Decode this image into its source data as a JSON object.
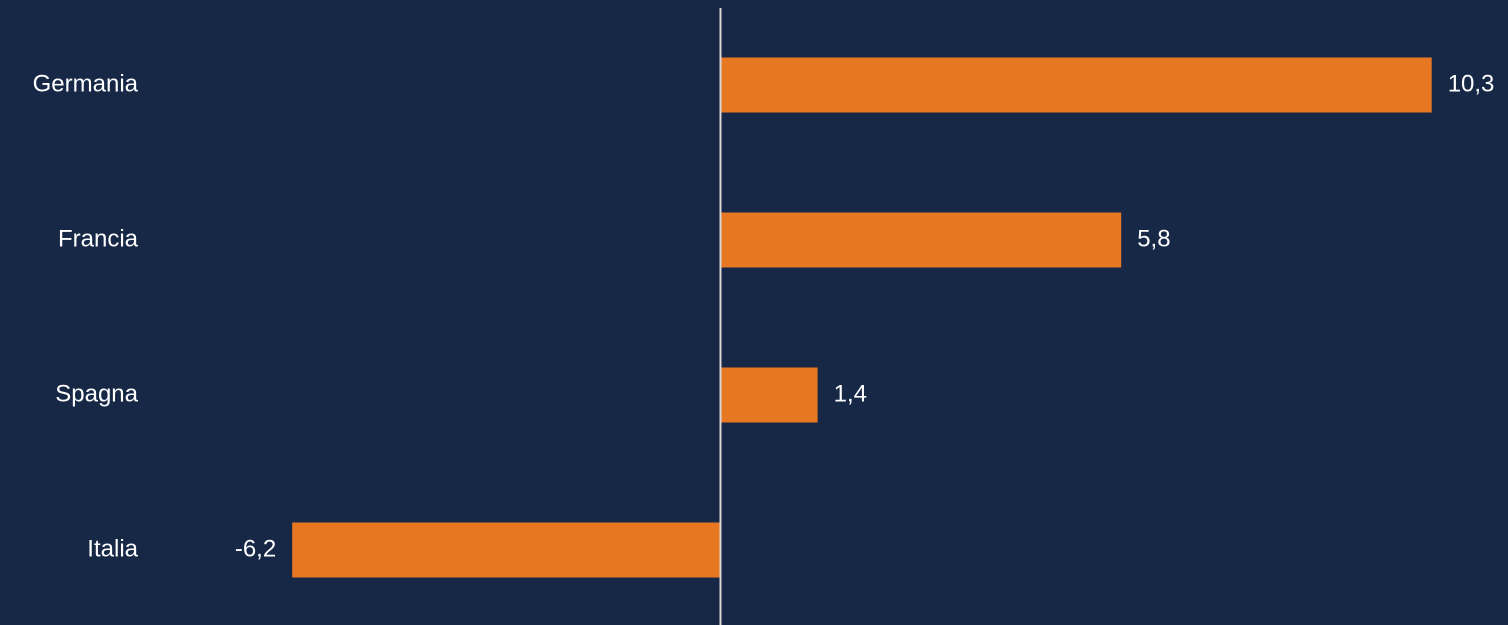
{
  "chart_data": {
    "type": "bar",
    "orientation": "horizontal",
    "categories": [
      "Germania",
      "Francia",
      "Spagna",
      "Italia"
    ],
    "values": [
      10.3,
      5.8,
      1.4,
      -6.2
    ],
    "value_labels": [
      "10,3",
      "5,8",
      "1,4",
      "-6,2"
    ],
    "xlim": [
      -6.2,
      10.3
    ],
    "grid": false,
    "legend": "none",
    "colors": {
      "background": "#172847",
      "bar": "#E87722",
      "axis": "#d9d9d9",
      "text": "#ffffff"
    }
  }
}
